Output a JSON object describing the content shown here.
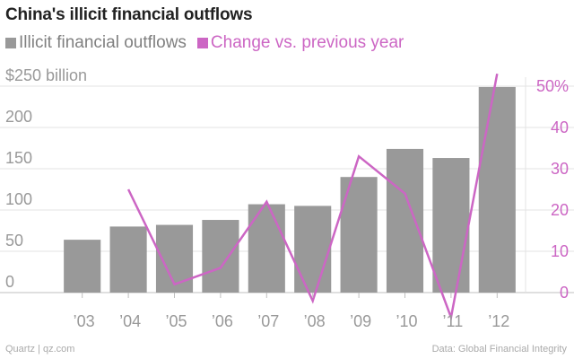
{
  "chart_data": {
    "type": "bar+line",
    "title": "China's illicit financial outflows",
    "categories": [
      "’03",
      "’04",
      "’05",
      "’06",
      "’07",
      "’08",
      "’09",
      "’10",
      "’11",
      "’12"
    ],
    "series": [
      {
        "name": "Illicit financial outflows",
        "type": "bar",
        "axis": "left",
        "color": "#999999",
        "values": [
          64,
          80,
          82,
          88,
          107,
          105,
          140,
          174,
          163,
          249
        ]
      },
      {
        "name": "Change vs. previous year",
        "type": "line",
        "axis": "right",
        "color": "#cc66c4",
        "values": [
          null,
          25,
          2,
          6,
          22,
          -2,
          33,
          24,
          -6,
          53
        ]
      }
    ],
    "left_axis": {
      "ylim": [
        0,
        250
      ],
      "ticks": [
        0,
        50,
        100,
        150,
        200,
        250
      ],
      "tick_labels": [
        "0",
        "50",
        "100",
        "150",
        "200",
        "$250 billion"
      ]
    },
    "right_axis": {
      "ylim": [
        0,
        50
      ],
      "ticks": [
        0,
        10,
        20,
        30,
        40,
        50
      ],
      "tick_labels": [
        "0",
        "10",
        "20",
        "30",
        "40",
        "50%"
      ]
    },
    "grid": true
  },
  "footer": {
    "source_left": "Quartz | qz.com",
    "source_right": "Data: Global Financial Integrity"
  }
}
